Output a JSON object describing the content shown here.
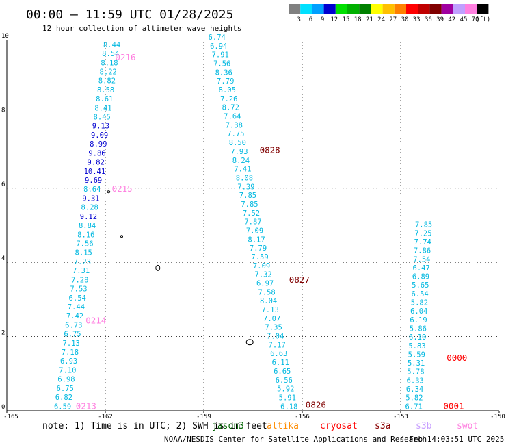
{
  "title": "00:00 – 11:59 UTC 01/28/2025",
  "subtitle": "12 hour collection of altimeter wave heights",
  "note": "note:  1) Time is in UTC; 2) SWH is in feet",
  "footer_left": "NOAA/NESDIS Center for Satellite Applications and Research",
  "footer_right": "4 Feb 14:03:51 UTC 2025",
  "missions": [
    {
      "name": "jason3",
      "color": "#006400"
    },
    {
      "name": "altika",
      "color": "#ff8c00"
    },
    {
      "name": "cryosat",
      "color": "#ff0000"
    },
    {
      "name": "s3a",
      "color": "#8b0000"
    },
    {
      "name": "s3b",
      "color": "#c8a0ff"
    },
    {
      "name": "swot",
      "color": "#ff80e0"
    }
  ],
  "colorbar": {
    "labels": [
      "3",
      "6",
      "9",
      "12",
      "15",
      "18",
      "21",
      "24",
      "27",
      "30",
      "33",
      "36",
      "39",
      "42",
      "45",
      "70",
      "(ft)"
    ],
    "colors": [
      "#808080",
      "#00e0ff",
      "#00a0ff",
      "#0000d0",
      "#00e000",
      "#00b000",
      "#008000",
      "#ffff00",
      "#ffc000",
      "#ff8000",
      "#ff0000",
      "#c00000",
      "#800000",
      "#a000a0",
      "#c0a0ff",
      "#ff80e0",
      "#000000"
    ]
  },
  "chart_data": {
    "type": "scatter",
    "x_range": [
      -165,
      -150
    ],
    "y_range": [
      0,
      10
    ],
    "x_ticks": [
      "-165",
      "-162",
      "-159",
      "-156",
      "-153",
      "-150"
    ],
    "y_ticks": [
      "0",
      "2",
      "4",
      "6",
      "8",
      "10"
    ],
    "grid": true,
    "tracks": [
      {
        "values": [
          "6.59",
          "6.82",
          "6.75",
          "6.98",
          "7.10",
          "6.93",
          "7.18",
          "7.13",
          "6.75",
          "6.73",
          "7.42",
          "7.44",
          "6.54",
          "7.53",
          "7.28",
          "7.31",
          "7.23",
          "8.15",
          "7.56",
          "8.16",
          "8.84",
          "9.12",
          "8.28",
          "9.31",
          "8.64",
          "9.69",
          "10.41",
          "9.82",
          "9.86",
          "8.99",
          "9.09",
          "9.13",
          "8.45",
          "8.41",
          "8.61",
          "8.58",
          "8.82",
          "8.22",
          "8.18",
          "8.54",
          "8.44"
        ],
        "colors": [
          "c",
          "c",
          "c",
          "c",
          "c",
          "c",
          "c",
          "c",
          "c",
          "c",
          "c",
          "c",
          "c",
          "c",
          "c",
          "c",
          "c",
          "c",
          "c",
          "c",
          "c",
          "b",
          "c",
          "b",
          "c",
          "b",
          "b",
          "b",
          "b",
          "b",
          "b",
          "b",
          "c",
          "c",
          "c",
          "c",
          "c",
          "c",
          "c",
          "c",
          "c"
        ],
        "x_start": -163.3,
        "x_end": -161.8,
        "y_start": 0.05,
        "y_end": 9.8
      },
      {
        "values": [
          "6.74",
          "6.94",
          "7.91",
          "7.56",
          "8.36",
          "7.79",
          "8.05",
          "7.26",
          "8.72",
          "7.64",
          "7.38",
          "7.75",
          "8.50",
          "7.93",
          "8.24",
          "7.41",
          "8.08",
          "7.39",
          "7.85",
          "7.85",
          "7.52",
          "7.87",
          "7.09",
          "8.17",
          "7.79",
          "7.59",
          "7.09",
          "7.32",
          "6.97",
          "7.58",
          "8.04",
          "7.13",
          "7.07",
          "7.35",
          "7.04",
          "7.17",
          "6.63",
          "6.11",
          "6.65",
          "6.56",
          "5.92",
          "5.91",
          "6.18"
        ],
        "colors": [
          "c",
          "c",
          "c",
          "c",
          "c",
          "c",
          "c",
          "c",
          "c",
          "c",
          "c",
          "c",
          "c",
          "c",
          "c",
          "c",
          "c",
          "c",
          "c",
          "c",
          "c",
          "c",
          "c",
          "c",
          "c",
          "c",
          "c",
          "c",
          "c",
          "c",
          "c",
          "c",
          "c",
          "c",
          "c",
          "c",
          "c",
          "c",
          "c",
          "c",
          "c",
          "c",
          "c"
        ],
        "x_start": -158.6,
        "x_end": -156.4,
        "y_start": 10.0,
        "y_end": 0.05
      },
      {
        "values": [
          "7.85",
          "7.25",
          "7.74",
          "7.86",
          "7.54",
          "6.47",
          "6.89",
          "5.65",
          "6.54",
          "5.82",
          "6.04",
          "6.19",
          "5.86",
          "6.10",
          "5.83",
          "5.59",
          "5.31",
          "5.78",
          "6.33",
          "6.34",
          "5.82",
          "6.71"
        ],
        "colors": [
          "c",
          "c",
          "c",
          "c",
          "c",
          "c",
          "c",
          "c",
          "c",
          "c",
          "c",
          "c",
          "c",
          "c",
          "c",
          "c",
          "c",
          "c",
          "c",
          "c",
          "c",
          "c"
        ],
        "x_start": -152.3,
        "x_end": -152.6,
        "y_start": 4.95,
        "y_end": 0.05
      }
    ],
    "time_labels": [
      {
        "text": "0216",
        "x": -161.7,
        "y": 9.45,
        "color": "#ff80e0"
      },
      {
        "text": "0215",
        "x": -161.8,
        "y": 5.9,
        "color": "#ff80e0"
      },
      {
        "text": "0214",
        "x": -162.6,
        "y": 2.35,
        "color": "#ff80e0"
      },
      {
        "text": "0213",
        "x": -162.9,
        "y": 0.05,
        "color": "#ff80e0"
      },
      {
        "text": "0828",
        "x": -157.3,
        "y": 6.95,
        "color": "#800000"
      },
      {
        "text": "0827",
        "x": -156.4,
        "y": 3.45,
        "color": "#800000"
      },
      {
        "text": "0826",
        "x": -155.9,
        "y": 0.08,
        "color": "#800000"
      },
      {
        "text": "0000",
        "x": -151.6,
        "y": 1.35,
        "color": "#ff0000"
      },
      {
        "text": "0001",
        "x": -151.7,
        "y": 0.05,
        "color": "#ff0000"
      }
    ]
  }
}
